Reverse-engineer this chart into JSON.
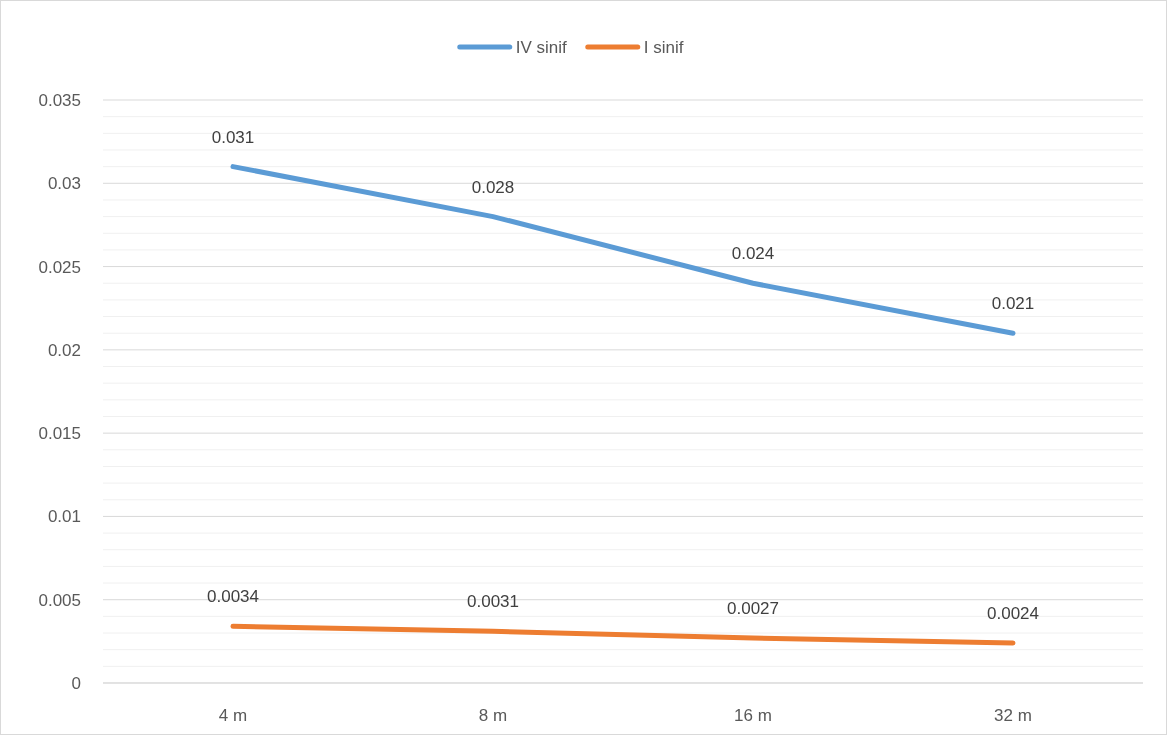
{
  "chart_data": {
    "type": "line",
    "categories": [
      "4 m",
      "8 m",
      "16 m",
      "32 m"
    ],
    "series": [
      {
        "name": "IV sinif",
        "color": "#5b9bd5",
        "values": [
          0.031,
          0.028,
          0.024,
          0.021
        ]
      },
      {
        "name": "I sinif",
        "color": "#ed7d31",
        "values": [
          0.0034,
          0.0031,
          0.0027,
          0.0024
        ]
      }
    ],
    "ylim": [
      0,
      0.035
    ],
    "yticks": [
      0,
      {
        "value": 0.001,
        "label": null
      },
      {
        "value": 0.002,
        "label": null
      },
      {
        "value": 0.003,
        "label": null
      },
      {
        "value": 0.004,
        "label": null
      },
      0.005,
      {
        "value": 0.006,
        "label": null
      },
      {
        "value": 0.007,
        "label": null
      },
      {
        "value": 0.008,
        "label": null
      },
      {
        "value": 0.009,
        "label": null
      },
      0.01,
      {
        "value": 0.011,
        "label": null
      },
      {
        "value": 0.012,
        "label": null
      },
      {
        "value": 0.013,
        "label": null
      },
      {
        "value": 0.014,
        "label": null
      },
      0.015,
      {
        "value": 0.016,
        "label": null
      },
      {
        "value": 0.017,
        "label": null
      },
      {
        "value": 0.018,
        "label": null
      },
      {
        "value": 0.019,
        "label": null
      },
      0.02,
      {
        "value": 0.021,
        "label": null
      },
      {
        "value": 0.022,
        "label": null
      },
      {
        "value": 0.023,
        "label": null
      },
      {
        "value": 0.024,
        "label": null
      },
      0.025,
      {
        "value": 0.026,
        "label": null
      },
      {
        "value": 0.027,
        "label": null
      },
      {
        "value": 0.028,
        "label": null
      },
      {
        "value": 0.029,
        "label": null
      },
      0.03,
      {
        "value": 0.031,
        "label": null
      },
      {
        "value": 0.032,
        "label": null
      },
      {
        "value": 0.033,
        "label": null
      },
      {
        "value": 0.034,
        "label": null
      },
      0.035
    ],
    "grid": "y",
    "legend": "top",
    "marker": "none",
    "line_style": "solid",
    "data_labels": true
  }
}
